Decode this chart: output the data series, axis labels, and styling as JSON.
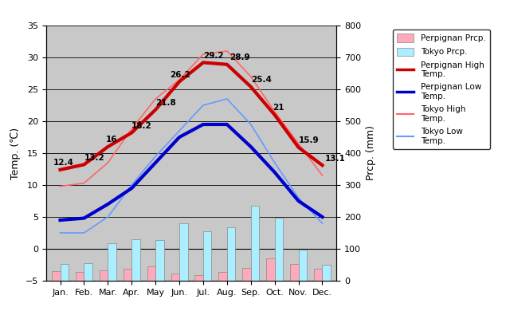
{
  "months": [
    "Jan.",
    "Feb.",
    "Mar.",
    "Apr.",
    "May",
    "Jun.",
    "Jul.",
    "Aug.",
    "Sep.",
    "Oct.",
    "Nov.",
    "Dec."
  ],
  "perpignan_high": [
    12.4,
    13.2,
    16.0,
    18.2,
    21.8,
    26.2,
    29.2,
    28.9,
    25.4,
    21.0,
    15.9,
    13.1
  ],
  "perpignan_low": [
    4.5,
    4.8,
    7.0,
    9.5,
    13.5,
    17.5,
    19.5,
    19.5,
    16.0,
    12.0,
    7.5,
    5.0
  ],
  "tokyo_high": [
    9.8,
    10.3,
    13.5,
    18.8,
    23.5,
    26.5,
    30.5,
    31.0,
    27.0,
    21.5,
    16.5,
    11.5
  ],
  "tokyo_low": [
    2.5,
    2.5,
    5.0,
    10.0,
    14.5,
    18.5,
    22.5,
    23.5,
    19.5,
    13.5,
    8.0,
    4.0
  ],
  "perpignan_prcp_mm": [
    30,
    28,
    32,
    38,
    45,
    22,
    18,
    28,
    40,
    70,
    52,
    38
  ],
  "tokyo_prcp_mm": [
    52,
    56,
    118,
    130,
    128,
    180,
    154,
    168,
    234,
    197,
    97,
    51
  ],
  "perpignan_high_labels": [
    "12.4",
    "13.2",
    "16",
    "18.2",
    "21.8",
    "26.2",
    "29.2",
    "28.9",
    "25.4",
    "21",
    "15.9",
    "13.1"
  ],
  "title_left": "Temp. (℃)",
  "title_right": "Prcp. (mm)",
  "ylim_left": [
    -5,
    35
  ],
  "ylim_right": [
    0,
    800
  ],
  "background_color": "#c8c8c8",
  "plot_bg_color": "#c8c8c8",
  "perpignan_high_color": "#cc0000",
  "perpignan_low_color": "#0000cc",
  "tokyo_high_color": "#ff6666",
  "tokyo_low_color": "#6699ff",
  "perpignan_prcp_color": "#ffaabb",
  "tokyo_prcp_color": "#aaeeff",
  "bar_width": 0.35,
  "legend_labels": [
    "Perpignan Prcp.",
    "Tokyo Prcp.",
    "Perpignan High\nTemp.",
    "Perpignan Low\nTemp.",
    "Tokyo High\nTemp.",
    "Tokyo Low\nTemp."
  ]
}
